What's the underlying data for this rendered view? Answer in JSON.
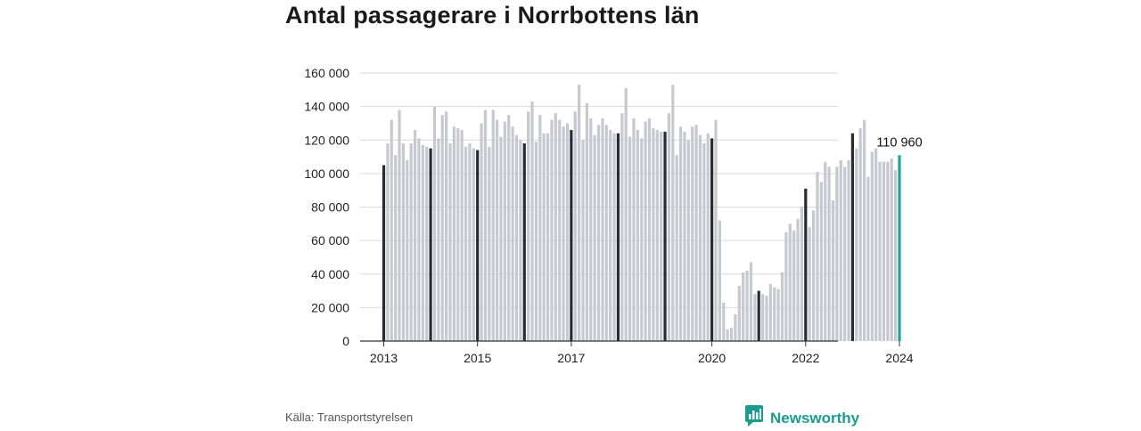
{
  "title": "Antal passagerare i Norrbottens län",
  "source": "Källa: Transportstyrelsen",
  "brand": "Newsworthy",
  "colors": {
    "bar": "#c8c8d0",
    "january": "#2a2a35",
    "latest": "#1aa69a",
    "grid": "#d9d9d9",
    "brand": "#1a9c8e"
  },
  "callout": "110 960",
  "chart_data": {
    "type": "bar",
    "title": "Antal passagerare i Norrbottens län",
    "xlabel": "",
    "ylabel": "",
    "ylim": [
      0,
      160000
    ],
    "yticks": [
      0,
      20000,
      40000,
      60000,
      80000,
      100000,
      120000,
      140000,
      160000
    ],
    "ytick_labels": [
      "0",
      "20 000",
      "40 000",
      "60 000",
      "80 000",
      "100 000",
      "120 000",
      "140 000",
      "160 000"
    ],
    "xtick_labels": [
      "2013",
      "2015",
      "2017",
      "2020",
      "2022",
      "2024"
    ],
    "start": "2013-01",
    "frequency": "monthly",
    "highlight": "January of each year dark; latest month teal",
    "values": [
      105000,
      118000,
      132000,
      111000,
      138000,
      118000,
      108000,
      118000,
      126000,
      121000,
      117000,
      116000,
      115000,
      140000,
      121000,
      135000,
      137000,
      118000,
      128000,
      127000,
      126000,
      116000,
      118000,
      115000,
      114000,
      130000,
      138000,
      116000,
      138000,
      132000,
      122000,
      131000,
      135000,
      128000,
      123000,
      120000,
      118000,
      137000,
      143000,
      119000,
      135000,
      124000,
      124000,
      132000,
      136000,
      132000,
      128000,
      130000,
      126000,
      137000,
      153000,
      120000,
      142000,
      133000,
      123000,
      129000,
      133000,
      129000,
      126000,
      124000,
      124000,
      136000,
      151000,
      122000,
      133000,
      126000,
      121000,
      131000,
      133000,
      127000,
      126000,
      125000,
      125000,
      136000,
      153000,
      111000,
      128000,
      125000,
      120000,
      128000,
      129000,
      123000,
      118000,
      124000,
      121000,
      132000,
      72000,
      23000,
      7000,
      8000,
      16000,
      33000,
      41000,
      42000,
      47000,
      28000,
      30000,
      28000,
      27000,
      34000,
      32000,
      31000,
      41000,
      65000,
      70000,
      66000,
      73000,
      80000,
      91000,
      68000,
      78000,
      101000,
      95000,
      107000,
      104000,
      84000,
      104000,
      108000,
      104000,
      108000,
      124000,
      115000,
      127000,
      132000,
      98000,
      113000,
      115000,
      107000,
      107000,
      107000,
      109000,
      102000,
      110960
    ]
  }
}
